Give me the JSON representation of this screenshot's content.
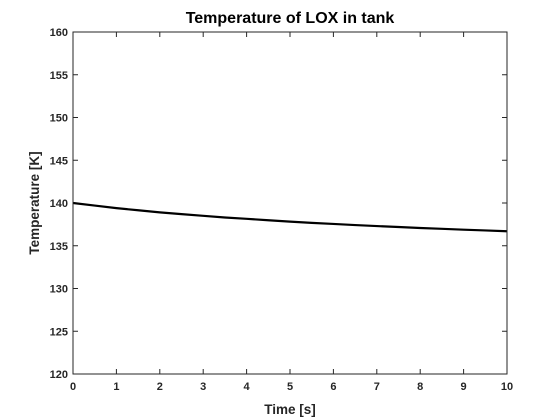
{
  "chart_data": {
    "type": "line",
    "title": "Temperature of LOX in tank",
    "xlabel": "Time [s]",
    "ylabel": "Temperature [K]",
    "xlim": [
      0,
      10
    ],
    "ylim": [
      120,
      160
    ],
    "xticks": [
      "0",
      "1",
      "2",
      "3",
      "4",
      "5",
      "6",
      "7",
      "8",
      "9",
      "10"
    ],
    "yticks": [
      "120",
      "125",
      "130",
      "135",
      "140",
      "145",
      "150",
      "155",
      "160"
    ],
    "grid": false,
    "series": [
      {
        "color": "#000000",
        "x": [
          0,
          0.5,
          1,
          1.5,
          2,
          2.5,
          3,
          3.5,
          4,
          4.5,
          5,
          5.5,
          6,
          6.5,
          7,
          7.5,
          8,
          8.5,
          9,
          9.5,
          10
        ],
        "y": [
          140.0,
          139.7,
          139.4,
          139.15,
          138.9,
          138.7,
          138.5,
          138.3,
          138.15,
          137.98,
          137.82,
          137.68,
          137.55,
          137.42,
          137.3,
          137.19,
          137.08,
          136.98,
          136.88,
          136.79,
          136.7
        ]
      }
    ]
  }
}
